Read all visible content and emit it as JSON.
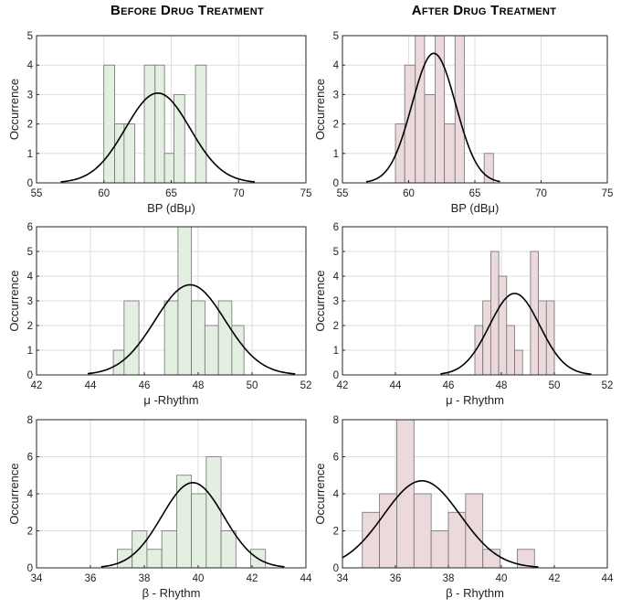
{
  "column_titles": [
    "Before Drug Treatment",
    "After Drug Treatment"
  ],
  "colors": {
    "before_bar": "#e3efe1",
    "after_bar": "#ecd9dc",
    "bar_edge": "#707070",
    "curve": "#000000",
    "grid": "#dedede",
    "axis": "#262626"
  },
  "chart_data": [
    {
      "type": "bar",
      "panel": "before-bp",
      "column": "Before Drug Treatment",
      "xlabel": "BP (dBμ)",
      "ylabel": "Occurrence",
      "xlim": [
        55,
        75
      ],
      "ylim": [
        0,
        5
      ],
      "xticks": [
        55,
        60,
        65,
        70,
        75
      ],
      "yticks": [
        0,
        1,
        2,
        3,
        4,
        5
      ],
      "bins": [
        {
          "x0": 60.0,
          "x1": 60.8,
          "count": 4
        },
        {
          "x0": 60.8,
          "x1": 61.5,
          "count": 2
        },
        {
          "x0": 61.5,
          "x1": 62.3,
          "count": 2
        },
        {
          "x0": 62.3,
          "x1": 63.0,
          "count": 0
        },
        {
          "x0": 63.0,
          "x1": 63.8,
          "count": 4
        },
        {
          "x0": 63.8,
          "x1": 64.5,
          "count": 4
        },
        {
          "x0": 64.5,
          "x1": 65.2,
          "count": 1
        },
        {
          "x0": 65.2,
          "x1": 66.0,
          "count": 3
        },
        {
          "x0": 66.0,
          "x1": 66.8,
          "count": 0
        },
        {
          "x0": 66.8,
          "x1": 67.6,
          "count": 4
        }
      ],
      "fit": {
        "mean": 64.0,
        "std": 2.4,
        "peak": 3.05,
        "range": [
          56.8,
          71.2
        ]
      },
      "grid": true
    },
    {
      "type": "bar",
      "panel": "after-bp",
      "column": "After Drug Treatment",
      "xlabel": "BP (dBμ)",
      "ylabel": "Occurrence",
      "xlim": [
        55,
        75
      ],
      "ylim": [
        0,
        5
      ],
      "xticks": [
        55,
        60,
        65,
        70,
        75
      ],
      "yticks": [
        0,
        1,
        2,
        3,
        4,
        5
      ],
      "bins": [
        {
          "x0": 59.0,
          "x1": 59.7,
          "count": 2
        },
        {
          "x0": 59.7,
          "x1": 60.5,
          "count": 4
        },
        {
          "x0": 60.5,
          "x1": 61.2,
          "count": 5
        },
        {
          "x0": 61.2,
          "x1": 62.0,
          "count": 3
        },
        {
          "x0": 62.0,
          "x1": 62.7,
          "count": 5
        },
        {
          "x0": 62.7,
          "x1": 63.5,
          "count": 2
        },
        {
          "x0": 63.5,
          "x1": 64.2,
          "count": 5
        },
        {
          "x0": 64.2,
          "x1": 65.0,
          "count": 0
        },
        {
          "x0": 65.0,
          "x1": 65.7,
          "count": 0
        },
        {
          "x0": 65.7,
          "x1": 66.4,
          "count": 1
        }
      ],
      "fit": {
        "mean": 61.9,
        "std": 1.65,
        "peak": 4.4,
        "range": [
          56.8,
          66.9
        ]
      },
      "grid": true
    },
    {
      "type": "bar",
      "panel": "before-mu",
      "column": "Before Drug Treatment",
      "xlabel": "μ -Rhythm",
      "ylabel": "Occurrence",
      "xlim": [
        42,
        52
      ],
      "ylim": [
        0,
        6
      ],
      "xticks": [
        42,
        44,
        46,
        48,
        50,
        52
      ],
      "yticks": [
        0,
        1,
        2,
        3,
        4,
        5,
        6
      ],
      "bins": [
        {
          "x0": 44.85,
          "x1": 45.25,
          "count": 1
        },
        {
          "x0": 45.25,
          "x1": 45.8,
          "count": 3
        },
        {
          "x0": 45.8,
          "x1": 46.75,
          "count": 0
        },
        {
          "x0": 46.75,
          "x1": 47.25,
          "count": 3
        },
        {
          "x0": 47.25,
          "x1": 47.75,
          "count": 6
        },
        {
          "x0": 47.75,
          "x1": 48.25,
          "count": 3
        },
        {
          "x0": 48.25,
          "x1": 48.75,
          "count": 2
        },
        {
          "x0": 48.75,
          "x1": 49.25,
          "count": 3
        },
        {
          "x0": 49.25,
          "x1": 49.7,
          "count": 2
        }
      ],
      "fit": {
        "mean": 47.7,
        "std": 1.3,
        "peak": 3.65,
        "range": [
          43.9,
          51.6
        ]
      },
      "grid": true
    },
    {
      "type": "bar",
      "panel": "after-mu",
      "column": "After Drug Treatment",
      "xlabel": "μ - Rhythm",
      "ylabel": "Occurrence",
      "xlim": [
        42,
        52
      ],
      "ylim": [
        0,
        6
      ],
      "xticks": [
        42,
        44,
        46,
        48,
        50,
        52
      ],
      "yticks": [
        0,
        1,
        2,
        3,
        4,
        5,
        6
      ],
      "bins": [
        {
          "x0": 47.0,
          "x1": 47.3,
          "count": 2
        },
        {
          "x0": 47.3,
          "x1": 47.6,
          "count": 3
        },
        {
          "x0": 47.6,
          "x1": 47.9,
          "count": 5
        },
        {
          "x0": 47.9,
          "x1": 48.2,
          "count": 4
        },
        {
          "x0": 48.2,
          "x1": 48.5,
          "count": 2
        },
        {
          "x0": 48.5,
          "x1": 48.8,
          "count": 1
        },
        {
          "x0": 48.8,
          "x1": 49.1,
          "count": 0
        },
        {
          "x0": 49.1,
          "x1": 49.4,
          "count": 5
        },
        {
          "x0": 49.4,
          "x1": 49.7,
          "count": 3
        },
        {
          "x0": 49.7,
          "x1": 50.0,
          "count": 3
        }
      ],
      "fit": {
        "mean": 48.5,
        "std": 0.95,
        "peak": 3.3,
        "range": [
          45.7,
          51.4
        ]
      },
      "grid": true
    },
    {
      "type": "bar",
      "panel": "before-beta",
      "column": "Before Drug Treatment",
      "xlabel": "β - Rhythm",
      "ylabel": "Occurrence",
      "xlim": [
        34,
        44
      ],
      "ylim": [
        0,
        8
      ],
      "xticks": [
        34,
        36,
        38,
        40,
        42,
        44
      ],
      "yticks": [
        0,
        2,
        4,
        6,
        8
      ],
      "bins": [
        {
          "x0": 37.0,
          "x1": 37.55,
          "count": 1
        },
        {
          "x0": 37.55,
          "x1": 38.1,
          "count": 2
        },
        {
          "x0": 38.1,
          "x1": 38.65,
          "count": 1
        },
        {
          "x0": 38.65,
          "x1": 39.2,
          "count": 2
        },
        {
          "x0": 39.2,
          "x1": 39.75,
          "count": 5
        },
        {
          "x0": 39.75,
          "x1": 40.3,
          "count": 4
        },
        {
          "x0": 40.3,
          "x1": 40.85,
          "count": 6
        },
        {
          "x0": 40.85,
          "x1": 41.4,
          "count": 2
        },
        {
          "x0": 41.4,
          "x1": 41.95,
          "count": 0
        },
        {
          "x0": 41.95,
          "x1": 42.5,
          "count": 1
        }
      ],
      "fit": {
        "mean": 39.8,
        "std": 1.15,
        "peak": 4.6,
        "range": [
          36.4,
          43.2
        ]
      },
      "grid": true
    },
    {
      "type": "bar",
      "panel": "after-beta",
      "column": "After Drug Treatment",
      "xlabel": "β - Rhythm",
      "ylabel": "Occurrence",
      "xlim": [
        34,
        44
      ],
      "ylim": [
        0,
        8
      ],
      "xticks": [
        34,
        36,
        38,
        40,
        42,
        44
      ],
      "yticks": [
        0,
        2,
        4,
        6,
        8
      ],
      "bins": [
        {
          "x0": 34.75,
          "x1": 35.4,
          "count": 3
        },
        {
          "x0": 35.4,
          "x1": 36.05,
          "count": 4
        },
        {
          "x0": 36.05,
          "x1": 36.7,
          "count": 8
        },
        {
          "x0": 36.7,
          "x1": 37.35,
          "count": 4
        },
        {
          "x0": 37.35,
          "x1": 38.0,
          "count": 2
        },
        {
          "x0": 38.0,
          "x1": 38.65,
          "count": 3
        },
        {
          "x0": 38.65,
          "x1": 39.3,
          "count": 4
        },
        {
          "x0": 39.3,
          "x1": 39.95,
          "count": 1
        },
        {
          "x0": 39.95,
          "x1": 40.6,
          "count": 0
        },
        {
          "x0": 40.6,
          "x1": 41.25,
          "count": 1
        }
      ],
      "fit": {
        "mean": 37.0,
        "std": 1.45,
        "peak": 4.7,
        "range": [
          34.0,
          41.4
        ]
      },
      "grid": true
    }
  ]
}
